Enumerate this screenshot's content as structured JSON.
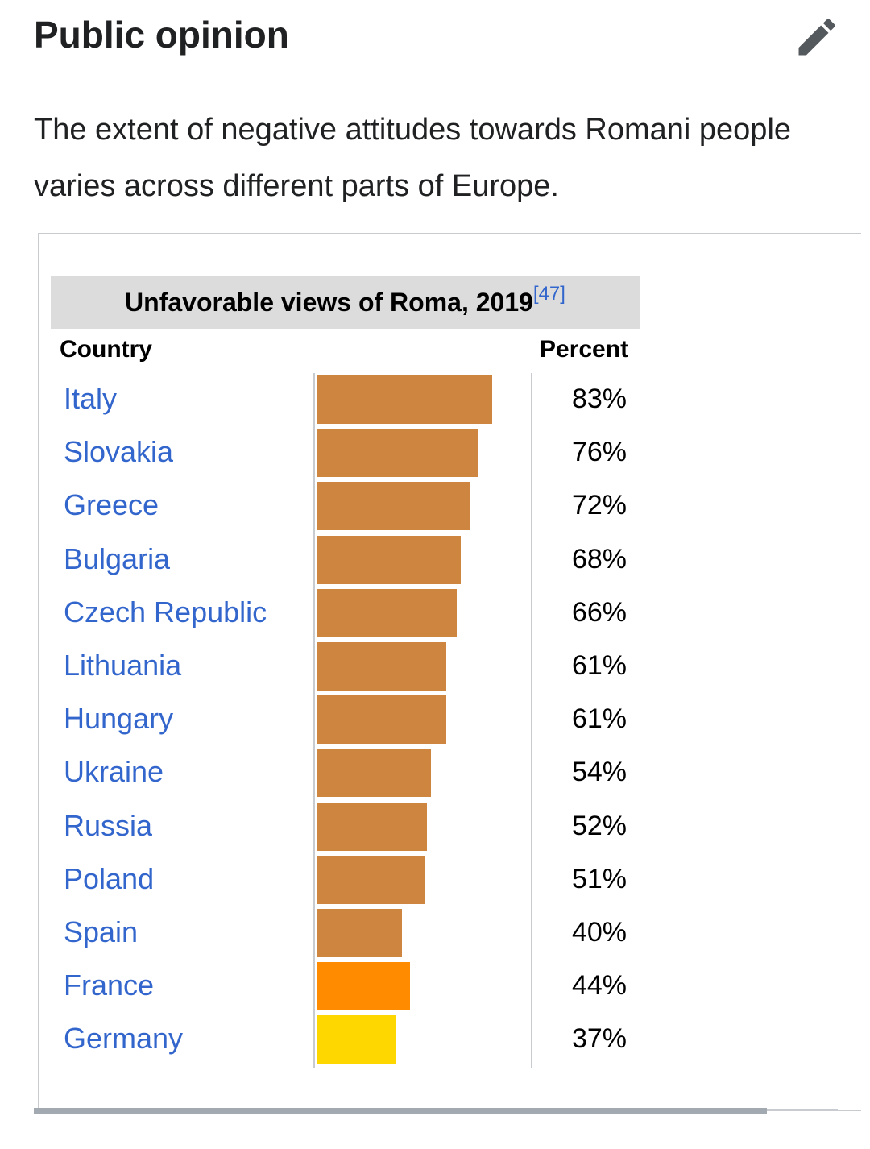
{
  "section": {
    "title": "Public opinion",
    "edit_icon": "pencil-icon",
    "intro": "The extent of negative attitudes towards Romani people varies across different parts of Europe."
  },
  "table": {
    "caption": "Unfavorable views of Roma, 2019",
    "caption_ref": "[47]",
    "header_country": "Country",
    "header_percent": "Percent"
  },
  "colors": {
    "default_bar": "#cd853f",
    "france_bar": "#ff8c00",
    "germany_bar": "#ffd700",
    "link": "#3366cc"
  },
  "chart_data": {
    "type": "bar",
    "orientation": "horizontal",
    "title": "Unfavorable views of Roma, 2019",
    "categories": [
      "Italy",
      "Slovakia",
      "Greece",
      "Bulgaria",
      "Czech Republic",
      "Lithuania",
      "Hungary",
      "Ukraine",
      "Russia",
      "Poland",
      "Spain",
      "France",
      "Germany"
    ],
    "values": [
      83,
      76,
      72,
      68,
      66,
      61,
      61,
      54,
      52,
      51,
      40,
      44,
      37
    ],
    "value_labels": [
      "83%",
      "76%",
      "72%",
      "68%",
      "66%",
      "61%",
      "61%",
      "54%",
      "52%",
      "51%",
      "40%",
      "44%",
      "37%"
    ],
    "bar_colors": [
      "#cd853f",
      "#cd853f",
      "#cd853f",
      "#cd853f",
      "#cd853f",
      "#cd853f",
      "#cd853f",
      "#cd853f",
      "#cd853f",
      "#cd853f",
      "#cd853f",
      "#ff8c00",
      "#ffd700"
    ],
    "xlim": [
      0,
      100
    ],
    "grid": false
  }
}
